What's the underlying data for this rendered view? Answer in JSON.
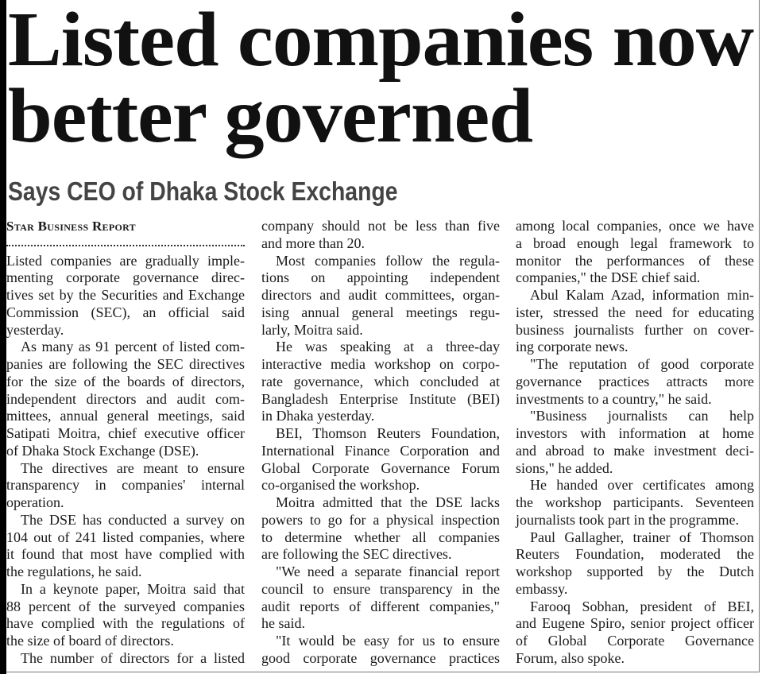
{
  "headline": [
    "Listed companies now",
    "better governed"
  ],
  "subheadline": "Says CEO of Dhaka Stock Exchange",
  "byline": "Star Business Report",
  "columns": [
    [
      {
        "indent": false,
        "continues": false,
        "lines": [
          "Listed companies are gradually imple-",
          "menting corporate governance direc-",
          "tives set by the Securities and Exchange",
          "Commission (SEC), an official said",
          "yesterday."
        ]
      },
      {
        "indent": true,
        "continues": false,
        "lines": [
          "As many as 91 percent of listed com-",
          "panies are following the SEC directives",
          "for the size of the boards of directors,",
          "independent directors and audit com-",
          "mittees, annual general meetings, said",
          "Satipati Moitra, chief executive officer",
          "of Dhaka Stock Exchange (DSE)."
        ]
      },
      {
        "indent": true,
        "continues": false,
        "lines": [
          "The directives are meant to ensure",
          "transparency in companies' internal",
          "operation."
        ]
      },
      {
        "indent": true,
        "continues": false,
        "lines": [
          "The DSE has conducted a survey on",
          "104 out of 241 listed companies, where",
          "it found that most have complied with",
          "the regulations, he said."
        ]
      },
      {
        "indent": true,
        "continues": false,
        "lines": [
          "In a keynote paper, Moitra said that",
          "88 percent of the surveyed companies",
          "have complied with the regulations of",
          "the size of board of directors."
        ]
      },
      {
        "indent": true,
        "continues": true,
        "lines": [
          "The number of directors for a listed"
        ]
      }
    ],
    [
      {
        "indent": false,
        "continues": false,
        "lines": [
          "company should not be less than five",
          "and more than 20."
        ]
      },
      {
        "indent": true,
        "continues": false,
        "lines": [
          "Most companies follow the regula-",
          "tions on appointing independent",
          "directors and audit committees, organ-",
          "ising annual general meetings regu-",
          "larly, Moitra said."
        ]
      },
      {
        "indent": true,
        "continues": false,
        "lines": [
          "He was speaking at a three-day",
          "interactive media workshop on corpo-",
          "rate governance, which concluded at",
          "Bangladesh Enterprise Institute (BEI)",
          "in Dhaka yesterday."
        ]
      },
      {
        "indent": true,
        "continues": false,
        "lines": [
          "BEI, Thomson Reuters Foundation,",
          "International Finance Corporation and",
          "Global Corporate Governance Forum",
          "co-organised the workshop."
        ]
      },
      {
        "indent": true,
        "continues": false,
        "lines": [
          "Moitra admitted that the DSE lacks",
          "powers to go for a physical inspection",
          "to determine whether all companies",
          "are following the SEC directives."
        ]
      },
      {
        "indent": true,
        "continues": false,
        "lines": [
          "\"We need a separate financial report",
          "council to ensure transparency in the",
          "audit reports of different companies,\"",
          "he said."
        ]
      },
      {
        "indent": true,
        "continues": true,
        "lines": [
          "\"It would be easy for us to ensure",
          "good corporate governance practices"
        ]
      }
    ],
    [
      {
        "indent": false,
        "continues": false,
        "lines": [
          "among local companies, once we have",
          "a broad enough legal framework to",
          "monitor the performances of these",
          "companies,\" the DSE chief said."
        ]
      },
      {
        "indent": true,
        "continues": false,
        "lines": [
          "Abul Kalam Azad, information min-",
          "ister, stressed the need for educating",
          "business journalists further on cover-",
          "ing corporate news."
        ]
      },
      {
        "indent": true,
        "continues": false,
        "lines": [
          "\"The reputation of good corporate",
          "governance practices attracts more",
          "investments to a country,\" he said."
        ]
      },
      {
        "indent": true,
        "continues": false,
        "lines": [
          "\"Business journalists can help",
          "investors with information at home",
          "and abroad to make investment deci-",
          "sions,\" he added."
        ]
      },
      {
        "indent": true,
        "continues": false,
        "lines": [
          "He handed over certificates among",
          "the workshop participants. Seventeen",
          "journalists took part in the programme."
        ]
      },
      {
        "indent": true,
        "continues": false,
        "lines": [
          "Paul Gallagher, trainer of Thomson",
          "Reuters Foundation, moderated the",
          "workshop supported by the Dutch",
          "embassy."
        ]
      },
      {
        "indent": true,
        "continues": false,
        "lines": [
          "Farooq Sobhan, president of BEI,",
          "and Eugene Spiro, senior project officer",
          "of Global Corporate Governance",
          "Forum, also spoke."
        ]
      }
    ]
  ]
}
